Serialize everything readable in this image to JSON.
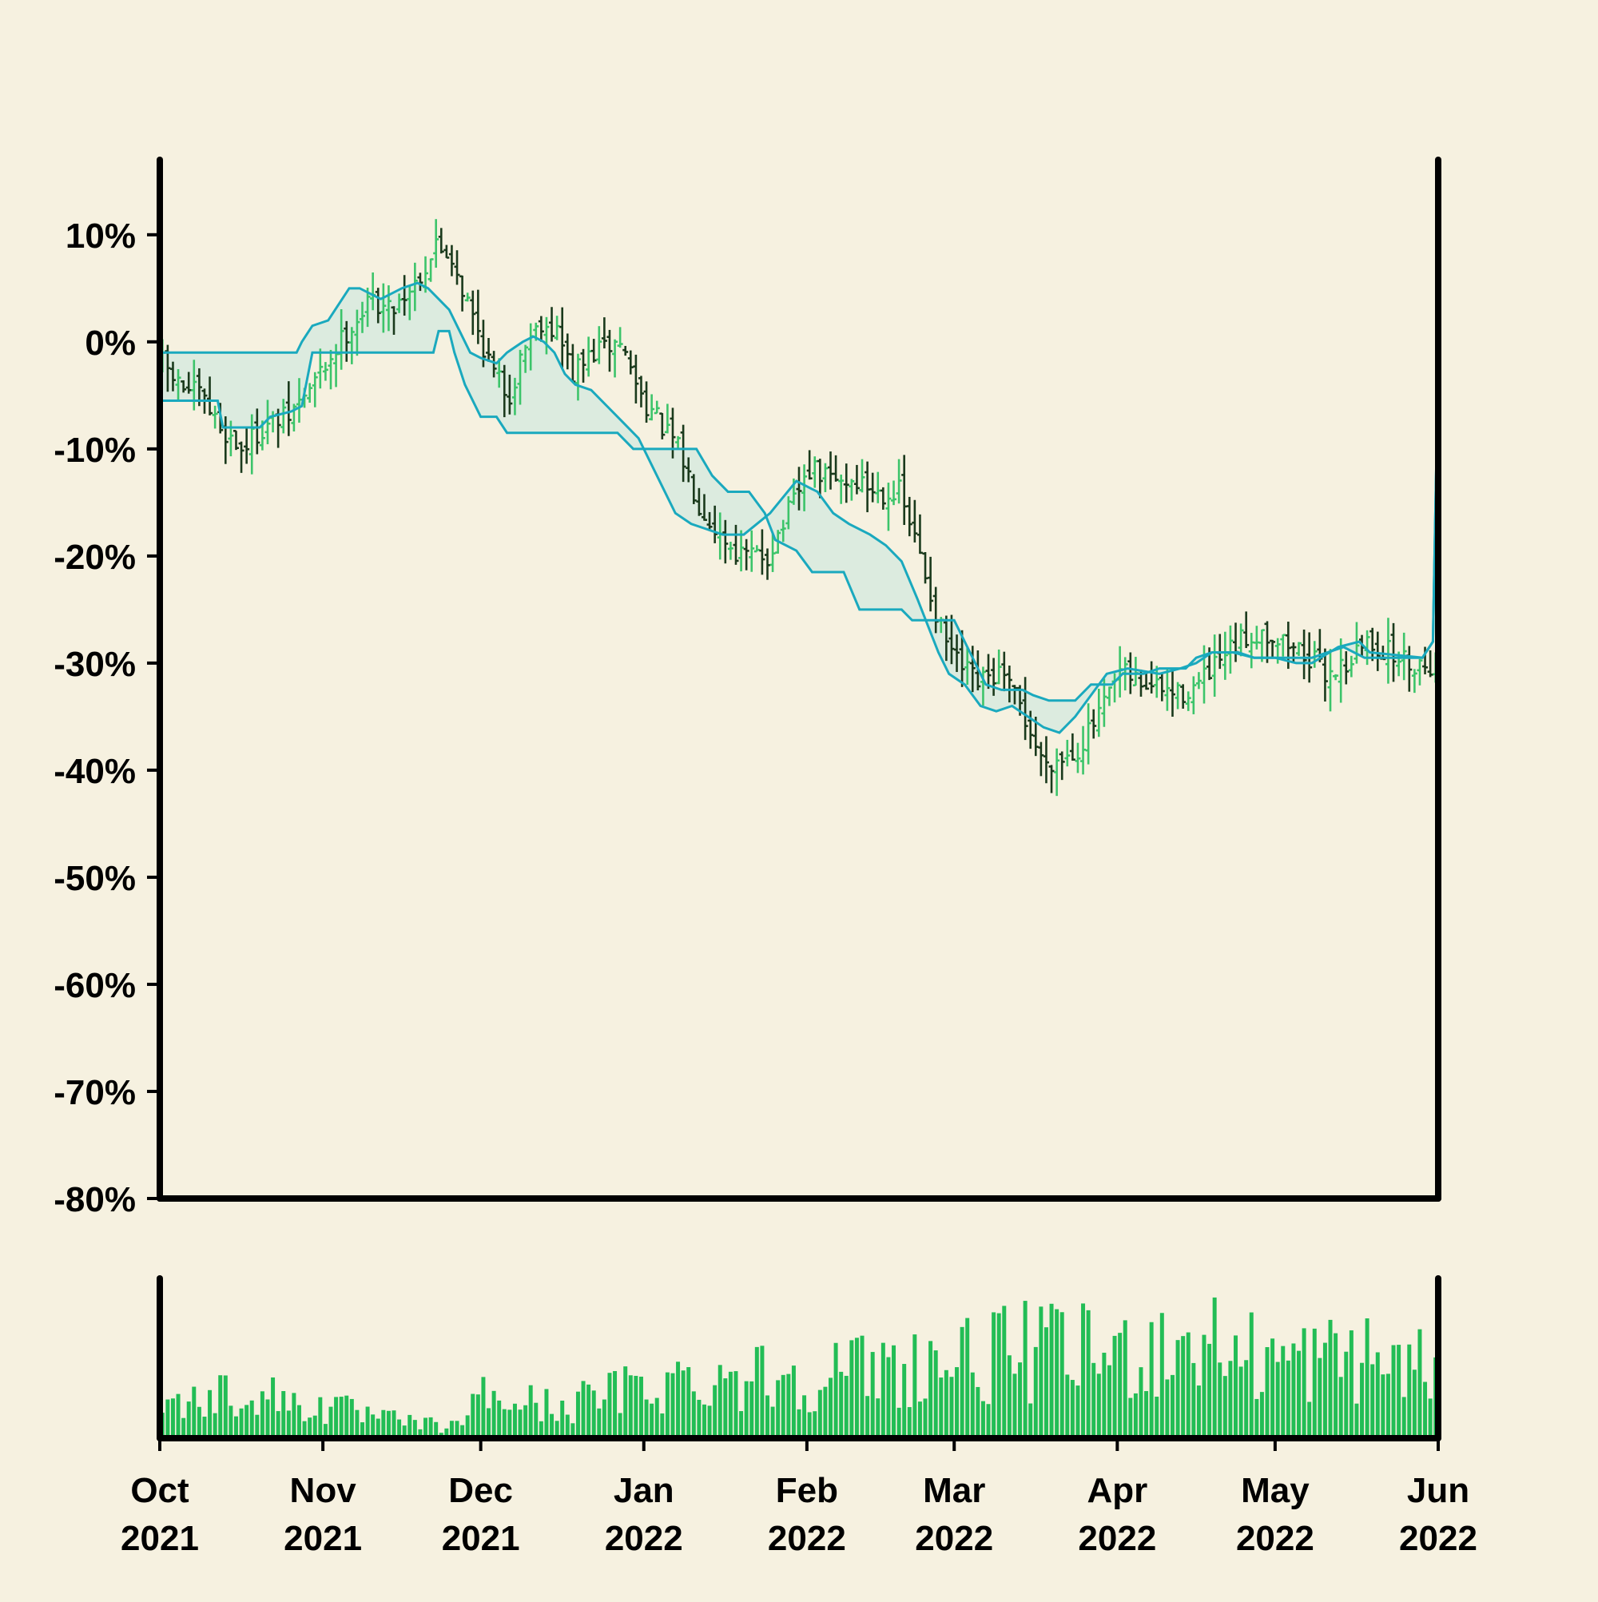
{
  "colors": {
    "background": "#f6f1e0",
    "axis": "#000000",
    "bar_up": "#3cc46a",
    "bar_down": "#1a3a1c",
    "envelope_line": "#1aa9be",
    "envelope_fill": "#dcebdf",
    "volume": "#22bd55"
  },
  "chart_data": [
    {
      "type": "ohlc",
      "title": "",
      "xlabel": "",
      "ylabel": "",
      "y_unit": "percent",
      "ylim": [
        -80,
        17
      ],
      "yticks": [
        10,
        0,
        -10,
        -20,
        -30,
        -40,
        -50,
        -60,
        -70,
        -80
      ],
      "ytick_labels": [
        "10%",
        "0%",
        "-10%",
        "-20%",
        "-30%",
        "-40%",
        "-50%",
        "-60%",
        "-70%",
        "-80%"
      ],
      "x_range": [
        "2021-10-01",
        "2022-06-01"
      ],
      "grid": false,
      "legend": "none",
      "close_anchors": [
        [
          "2021-10-01",
          -2
        ],
        [
          "2021-10-04",
          -4
        ],
        [
          "2021-10-08",
          -5
        ],
        [
          "2021-10-12",
          -8
        ],
        [
          "2021-10-16",
          -10
        ],
        [
          "2021-10-20",
          -8
        ],
        [
          "2021-10-25",
          -7
        ],
        [
          "2021-10-31",
          -3
        ],
        [
          "2021-11-05",
          1
        ],
        [
          "2021-11-10",
          4
        ],
        [
          "2021-11-13",
          3
        ],
        [
          "2021-11-17",
          5
        ],
        [
          "2021-11-20",
          7
        ],
        [
          "2021-11-22",
          9
        ],
        [
          "2021-11-25",
          8
        ],
        [
          "2021-11-27",
          5
        ],
        [
          "2021-11-30",
          1
        ],
        [
          "2021-12-03",
          -3
        ],
        [
          "2021-12-06",
          -5
        ],
        [
          "2021-12-09",
          0
        ],
        [
          "2021-12-12",
          2
        ],
        [
          "2021-12-15",
          1
        ],
        [
          "2021-12-18",
          -3
        ],
        [
          "2021-12-22",
          -1
        ],
        [
          "2021-12-27",
          0
        ],
        [
          "2021-12-31",
          -5
        ],
        [
          "2022-01-04",
          -8
        ],
        [
          "2022-01-07",
          -10
        ],
        [
          "2022-01-11",
          -15
        ],
        [
          "2022-01-15",
          -18
        ],
        [
          "2022-01-19",
          -20
        ],
        [
          "2022-01-24",
          -20
        ],
        [
          "2022-01-28",
          -16
        ],
        [
          "2022-02-01",
          -12
        ],
        [
          "2022-02-06",
          -13
        ],
        [
          "2022-02-10",
          -13
        ],
        [
          "2022-02-14",
          -14
        ],
        [
          "2022-02-18",
          -14
        ],
        [
          "2022-02-22",
          -20
        ],
        [
          "2022-02-26",
          -27
        ],
        [
          "2022-03-01",
          -30
        ],
        [
          "2022-03-05",
          -32
        ],
        [
          "2022-03-09",
          -31
        ],
        [
          "2022-03-13",
          -34
        ],
        [
          "2022-03-17",
          -39
        ],
        [
          "2022-03-20",
          -39
        ],
        [
          "2022-03-24",
          -38
        ],
        [
          "2022-03-28",
          -35
        ],
        [
          "2022-04-01",
          -31
        ],
        [
          "2022-04-06",
          -32
        ],
        [
          "2022-04-12",
          -33
        ],
        [
          "2022-04-16",
          -32
        ],
        [
          "2022-04-20",
          -30
        ],
        [
          "2022-04-24",
          -28
        ],
        [
          "2022-04-28",
          -27
        ],
        [
          "2022-05-02",
          -28
        ],
        [
          "2022-05-06",
          -29
        ],
        [
          "2022-05-10",
          -31
        ],
        [
          "2022-05-14",
          -30
        ],
        [
          "2022-05-18",
          -28
        ],
        [
          "2022-05-22",
          -29
        ],
        [
          "2022-05-26",
          -30
        ],
        [
          "2022-05-31",
          -30
        ]
      ],
      "typical_bar_range": 4.5,
      "upper_band": [
        [
          "2021-10-01",
          -1
        ],
        [
          "2021-10-27",
          -1
        ],
        [
          "2021-10-28",
          0
        ],
        [
          "2021-10-30",
          1.5
        ],
        [
          "2021-11-02",
          2
        ],
        [
          "2021-11-04",
          3.5
        ],
        [
          "2021-11-06",
          5
        ],
        [
          "2021-11-08",
          5
        ],
        [
          "2021-11-10",
          4.5
        ],
        [
          "2021-11-12",
          4
        ],
        [
          "2021-11-14",
          4.5
        ],
        [
          "2021-11-16",
          5
        ],
        [
          "2021-11-19",
          5.5
        ],
        [
          "2021-11-21",
          5
        ],
        [
          "2021-11-23",
          4
        ],
        [
          "2021-11-25",
          3
        ],
        [
          "2021-11-27",
          1
        ],
        [
          "2021-11-29",
          -1
        ],
        [
          "2021-12-01",
          -1.5
        ],
        [
          "2021-12-04",
          -2
        ],
        [
          "2021-12-06",
          -1
        ],
        [
          "2021-12-09",
          0
        ],
        [
          "2021-12-11",
          0.5
        ],
        [
          "2021-12-13",
          0
        ],
        [
          "2021-12-15",
          -1
        ],
        [
          "2021-12-17",
          -3
        ],
        [
          "2021-12-19",
          -4
        ],
        [
          "2021-12-22",
          -4.5
        ],
        [
          "2021-12-25",
          -6
        ],
        [
          "2021-12-28",
          -7.5
        ],
        [
          "2021-12-31",
          -9
        ],
        [
          "2022-01-03",
          -12
        ],
        [
          "2022-01-07",
          -16
        ],
        [
          "2022-01-10",
          -17
        ],
        [
          "2022-01-13",
          -17.5
        ],
        [
          "2022-01-16",
          -18
        ],
        [
          "2022-01-20",
          -18
        ],
        [
          "2022-01-25",
          -16
        ],
        [
          "2022-01-30",
          -13
        ],
        [
          "2022-02-03",
          -14
        ],
        [
          "2022-02-06",
          -16
        ],
        [
          "2022-02-09",
          -17
        ],
        [
          "2022-02-13",
          -18
        ],
        [
          "2022-02-16",
          -19
        ],
        [
          "2022-02-19",
          -20.5
        ],
        [
          "2022-02-22",
          -24
        ],
        [
          "2022-02-26",
          -29
        ],
        [
          "2022-02-28",
          -31
        ],
        [
          "2022-03-03",
          -32
        ],
        [
          "2022-03-06",
          -34
        ],
        [
          "2022-03-09",
          -34.5
        ],
        [
          "2022-03-12",
          -34
        ],
        [
          "2022-03-15",
          -35
        ],
        [
          "2022-03-18",
          -36
        ],
        [
          "2022-03-21",
          -36.5
        ],
        [
          "2022-03-24",
          -35
        ],
        [
          "2022-03-27",
          -33
        ],
        [
          "2022-03-30",
          -31
        ],
        [
          "2022-04-03",
          -30.5
        ],
        [
          "2022-04-09",
          -31
        ],
        [
          "2022-04-13",
          -30.5
        ],
        [
          "2022-04-16",
          -30
        ],
        [
          "2022-04-19",
          -29
        ],
        [
          "2022-04-23",
          -29
        ],
        [
          "2022-04-27",
          -29.5
        ],
        [
          "2022-05-01",
          -29.5
        ],
        [
          "2022-05-05",
          -30
        ],
        [
          "2022-05-08",
          -30
        ],
        [
          "2022-05-13",
          -28.5
        ],
        [
          "2022-05-17",
          -28
        ],
        [
          "2022-05-19",
          -29
        ],
        [
          "2022-05-29",
          -29.5
        ],
        [
          "2022-05-31",
          -28
        ],
        [
          "2022-06-01",
          -2
        ]
      ],
      "lower_band": [
        [
          "2021-10-01",
          -5.5
        ],
        [
          "2021-10-12",
          -5.5
        ],
        [
          "2021-10-13",
          -8
        ],
        [
          "2021-10-20",
          -8
        ],
        [
          "2021-10-22",
          -7
        ],
        [
          "2021-10-26",
          -6.5
        ],
        [
          "2021-10-28",
          -6
        ],
        [
          "2021-10-30",
          -1
        ],
        [
          "2021-11-22",
          -1
        ],
        [
          "2021-11-23",
          1
        ],
        [
          "2021-11-25",
          1
        ],
        [
          "2021-11-26",
          -1
        ],
        [
          "2021-11-28",
          -4
        ],
        [
          "2021-12-01",
          -7
        ],
        [
          "2021-12-04",
          -7
        ],
        [
          "2021-12-06",
          -8.5
        ],
        [
          "2021-12-27",
          -8.5
        ],
        [
          "2021-12-30",
          -10
        ],
        [
          "2022-01-11",
          -10
        ],
        [
          "2022-01-14",
          -12.5
        ],
        [
          "2022-01-17",
          -14
        ],
        [
          "2022-01-21",
          -14
        ],
        [
          "2022-01-24",
          -16
        ],
        [
          "2022-01-26",
          -18.5
        ],
        [
          "2022-01-30",
          -19.5
        ],
        [
          "2022-02-02",
          -21.5
        ],
        [
          "2022-02-08",
          -21.5
        ],
        [
          "2022-02-11",
          -25
        ],
        [
          "2022-02-19",
          -25
        ],
        [
          "2022-02-21",
          -26
        ],
        [
          "2022-03-01",
          -26
        ],
        [
          "2022-03-04",
          -29
        ],
        [
          "2022-03-07",
          -32
        ],
        [
          "2022-03-10",
          -32.5
        ],
        [
          "2022-03-14",
          -32.5
        ],
        [
          "2022-03-16",
          -33
        ],
        [
          "2022-03-19",
          -33.5
        ],
        [
          "2022-03-24",
          -33.5
        ],
        [
          "2022-03-27",
          -32
        ],
        [
          "2022-03-31",
          -32
        ],
        [
          "2022-04-02",
          -31
        ],
        [
          "2022-04-06",
          -31
        ],
        [
          "2022-04-09",
          -30.5
        ],
        [
          "2022-04-14",
          -30.5
        ],
        [
          "2022-04-16",
          -29.5
        ],
        [
          "2022-04-19",
          -29
        ],
        [
          "2022-04-24",
          -29
        ],
        [
          "2022-04-27",
          -29.5
        ],
        [
          "2022-05-08",
          -29.5
        ],
        [
          "2022-05-14",
          -28.5
        ],
        [
          "2022-05-18",
          -29.5
        ],
        [
          "2022-05-29",
          -29.5
        ],
        [
          "2022-05-31",
          -28
        ],
        [
          "2022-06-01",
          -2
        ]
      ],
      "month_ticks": [
        {
          "date": "2021-10-01",
          "month": "Oct",
          "year": "2021"
        },
        {
          "date": "2021-11-01",
          "month": "Nov",
          "year": "2021"
        },
        {
          "date": "2021-12-01",
          "month": "Dec",
          "year": "2021"
        },
        {
          "date": "2022-01-01",
          "month": "Jan",
          "year": "2022"
        },
        {
          "date": "2022-02-01",
          "month": "Feb",
          "year": "2022"
        },
        {
          "date": "2022-03-01",
          "month": "Mar",
          "year": "2022"
        },
        {
          "date": "2022-04-01",
          "month": "Apr",
          "year": "2022"
        },
        {
          "date": "2022-05-01",
          "month": "May",
          "year": "2022"
        },
        {
          "date": "2022-06-01",
          "month": "Jun",
          "year": "2022"
        }
      ]
    },
    {
      "type": "bar",
      "role": "volume",
      "title": "",
      "yticks": [],
      "volume_anchors": [
        [
          "2021-10-01",
          0.22
        ],
        [
          "2021-10-15",
          0.33
        ],
        [
          "2021-11-01",
          0.22
        ],
        [
          "2021-11-15",
          0.12
        ],
        [
          "2021-11-25",
          0.08
        ],
        [
          "2021-12-01",
          0.3
        ],
        [
          "2021-12-15",
          0.22
        ],
        [
          "2022-01-01",
          0.38
        ],
        [
          "2022-01-15",
          0.45
        ],
        [
          "2022-02-01",
          0.45
        ],
        [
          "2022-02-15",
          0.5
        ],
        [
          "2022-03-01",
          0.55
        ],
        [
          "2022-03-15",
          0.62
        ],
        [
          "2022-04-01",
          0.6
        ],
        [
          "2022-04-15",
          0.7
        ],
        [
          "2022-05-01",
          0.55
        ],
        [
          "2022-05-15",
          0.58
        ],
        [
          "2022-05-31",
          0.5
        ]
      ]
    }
  ]
}
